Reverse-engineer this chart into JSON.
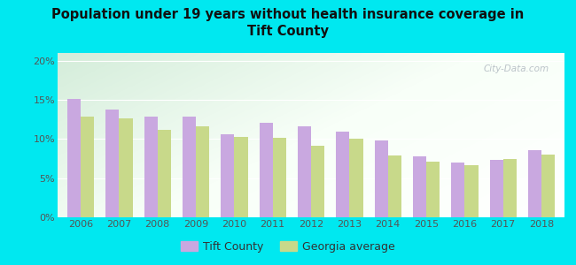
{
  "title": "Population under 19 years without health insurance coverage in\nTift County",
  "years": [
    2006,
    2007,
    2008,
    2009,
    2010,
    2011,
    2012,
    2013,
    2014,
    2015,
    2016,
    2017,
    2018
  ],
  "tift_county": [
    15.1,
    13.8,
    12.9,
    12.9,
    10.6,
    12.1,
    11.6,
    10.9,
    9.8,
    7.8,
    7.0,
    7.3,
    8.6
  ],
  "georgia_avg": [
    12.9,
    12.7,
    11.2,
    11.6,
    10.3,
    10.2,
    9.2,
    10.0,
    7.9,
    7.1,
    6.7,
    7.4,
    8.0
  ],
  "tift_color": "#c9a8e0",
  "georgia_color": "#c8d98a",
  "bg_outer": "#00e8f0",
  "ylim": [
    0,
    21
  ],
  "yticks": [
    0,
    5,
    10,
    15,
    20
  ],
  "ytick_labels": [
    "0%",
    "5%",
    "10%",
    "15%",
    "20%"
  ],
  "bar_width": 0.35,
  "legend_tift": "Tift County",
  "legend_ga": "Georgia average",
  "watermark": "City-Data.com"
}
